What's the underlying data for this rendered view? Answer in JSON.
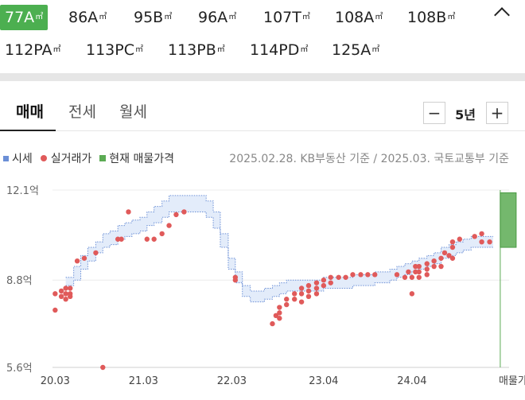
{
  "area_tabs": [
    {
      "label": "77A",
      "unit": "㎡",
      "selected": true
    },
    {
      "label": "86A",
      "unit": "㎡"
    },
    {
      "label": "95B",
      "unit": "㎡"
    },
    {
      "label": "96A",
      "unit": "㎡"
    },
    {
      "label": "107T",
      "unit": "㎡"
    },
    {
      "label": "108A",
      "unit": "㎡"
    },
    {
      "label": "108B",
      "unit": "㎡"
    },
    {
      "label": "112PA",
      "unit": "㎡"
    },
    {
      "label": "113PC",
      "unit": "㎡"
    },
    {
      "label": "113PB",
      "unit": "㎡"
    },
    {
      "label": "114PD",
      "unit": "㎡"
    },
    {
      "label": "125A",
      "unit": "㎡"
    }
  ],
  "trade_tabs": {
    "sale": "매매",
    "jeonse": "전세",
    "monthly": "월세"
  },
  "period": {
    "minus": "−",
    "value": "5년",
    "plus": "+"
  },
  "legend": {
    "market": "시세",
    "actual": "실거래가",
    "listing": "현재 매물가격"
  },
  "source": "2025.02.28. KB부동산 기준 / 2025.03. 국토교통부 기준",
  "colors": {
    "market": "#6b8fd6",
    "actual": "#e05a5a",
    "listing": "#5cab54",
    "accent": "#4caf50"
  },
  "chart_data": {
    "type": "scatter",
    "x_ticks": [
      "20.03",
      "21.03",
      "22.03",
      "23.04",
      "24.04"
    ],
    "x_extra_label": "매물가격",
    "y_ticks": [
      "12.1억",
      "8.8억",
      "5.6억"
    ],
    "ylim": [
      5.6,
      12.1
    ],
    "xlim": [
      2020.18,
      2025.35
    ],
    "grid": true,
    "market_band": {
      "x": [
        2020.33,
        2020.42,
        2020.5,
        2020.58,
        2020.67,
        2020.75,
        2020.83,
        2020.92,
        2021.0,
        2021.08,
        2021.17,
        2021.25,
        2021.33,
        2021.42,
        2021.5,
        2021.58,
        2021.67,
        2021.75,
        2021.83,
        2021.92,
        2022.0,
        2022.08,
        2022.17,
        2022.25,
        2022.33,
        2022.42,
        2022.5,
        2022.58,
        2022.67,
        2022.75,
        2022.83,
        2022.92,
        2023.0,
        2023.08,
        2023.17,
        2023.25,
        2023.33,
        2023.42,
        2023.5,
        2023.58,
        2023.67,
        2023.75,
        2023.83,
        2023.92,
        2024.0,
        2024.08,
        2024.17,
        2024.25,
        2024.33,
        2024.42,
        2024.5,
        2024.58,
        2024.67,
        2024.75,
        2024.83,
        2024.92,
        2025.0,
        2025.08,
        2025.17
      ],
      "upper": [
        8.9,
        9.3,
        9.7,
        10.0,
        10.2,
        10.5,
        10.6,
        10.8,
        10.9,
        11.0,
        11.1,
        11.3,
        11.5,
        11.7,
        11.9,
        11.9,
        11.9,
        11.9,
        11.9,
        11.7,
        11.3,
        10.5,
        9.6,
        9.1,
        8.6,
        8.4,
        8.4,
        8.5,
        8.6,
        8.7,
        8.8,
        8.8,
        8.8,
        8.8,
        8.8,
        8.9,
        8.9,
        8.9,
        8.9,
        9.0,
        9.0,
        9.0,
        9.1,
        9.1,
        9.2,
        9.3,
        9.4,
        9.5,
        9.6,
        9.7,
        9.8,
        10.0,
        10.1,
        10.2,
        10.3,
        10.4,
        10.4,
        10.4,
        10.4
      ],
      "lower": [
        8.6,
        8.8,
        9.2,
        9.5,
        9.8,
        10.0,
        10.1,
        10.3,
        10.4,
        10.5,
        10.6,
        10.8,
        10.9,
        11.1,
        11.3,
        11.3,
        11.3,
        11.3,
        11.3,
        11.1,
        10.7,
        10.0,
        9.2,
        8.7,
        8.2,
        8.0,
        8.0,
        8.1,
        8.2,
        8.3,
        8.4,
        8.4,
        8.4,
        8.4,
        8.4,
        8.5,
        8.5,
        8.5,
        8.5,
        8.6,
        8.6,
        8.6,
        8.7,
        8.7,
        8.8,
        8.9,
        9.0,
        9.1,
        9.2,
        9.3,
        9.4,
        9.6,
        9.7,
        9.8,
        9.9,
        10.0,
        10.0,
        10.0,
        10.0
      ]
    },
    "actual_trades": [
      {
        "x": 2020.21,
        "y": 7.7
      },
      {
        "x": 2020.21,
        "y": 8.3
      },
      {
        "x": 2020.28,
        "y": 8.4
      },
      {
        "x": 2020.28,
        "y": 8.2
      },
      {
        "x": 2020.33,
        "y": 8.5
      },
      {
        "x": 2020.33,
        "y": 8.3
      },
      {
        "x": 2020.33,
        "y": 8.1
      },
      {
        "x": 2020.38,
        "y": 8.5
      },
      {
        "x": 2020.38,
        "y": 8.3
      },
      {
        "x": 2020.38,
        "y": 8.2
      },
      {
        "x": 2020.46,
        "y": 9.5
      },
      {
        "x": 2020.54,
        "y": 9.6
      },
      {
        "x": 2020.67,
        "y": 9.8
      },
      {
        "x": 2020.75,
        "y": 5.6
      },
      {
        "x": 2020.92,
        "y": 10.3
      },
      {
        "x": 2020.96,
        "y": 10.3
      },
      {
        "x": 2021.04,
        "y": 11.3
      },
      {
        "x": 2021.25,
        "y": 10.3
      },
      {
        "x": 2021.33,
        "y": 10.3
      },
      {
        "x": 2021.42,
        "y": 10.5
      },
      {
        "x": 2021.5,
        "y": 10.8
      },
      {
        "x": 2021.58,
        "y": 11.2
      },
      {
        "x": 2021.67,
        "y": 11.3
      },
      {
        "x": 2022.25,
        "y": 8.9
      },
      {
        "x": 2022.25,
        "y": 8.8
      },
      {
        "x": 2022.67,
        "y": 7.2
      },
      {
        "x": 2022.71,
        "y": 7.5
      },
      {
        "x": 2022.75,
        "y": 7.8
      },
      {
        "x": 2022.75,
        "y": 7.6
      },
      {
        "x": 2022.75,
        "y": 7.4
      },
      {
        "x": 2022.83,
        "y": 8.1
      },
      {
        "x": 2022.83,
        "y": 7.9
      },
      {
        "x": 2022.92,
        "y": 8.3
      },
      {
        "x": 2022.92,
        "y": 8.1
      },
      {
        "x": 2023.0,
        "y": 8.5
      },
      {
        "x": 2023.0,
        "y": 8.3
      },
      {
        "x": 2023.0,
        "y": 8.0
      },
      {
        "x": 2023.08,
        "y": 8.6
      },
      {
        "x": 2023.08,
        "y": 8.4
      },
      {
        "x": 2023.08,
        "y": 8.2
      },
      {
        "x": 2023.17,
        "y": 8.7
      },
      {
        "x": 2023.17,
        "y": 8.5
      },
      {
        "x": 2023.17,
        "y": 8.3
      },
      {
        "x": 2023.25,
        "y": 8.8
      },
      {
        "x": 2023.25,
        "y": 8.6
      },
      {
        "x": 2023.33,
        "y": 8.9
      },
      {
        "x": 2023.33,
        "y": 8.7
      },
      {
        "x": 2023.42,
        "y": 8.9
      },
      {
        "x": 2023.5,
        "y": 8.9
      },
      {
        "x": 2023.58,
        "y": 9.0
      },
      {
        "x": 2023.67,
        "y": 9.0
      },
      {
        "x": 2023.75,
        "y": 9.0
      },
      {
        "x": 2023.83,
        "y": 9.0
      },
      {
        "x": 2024.08,
        "y": 9.0
      },
      {
        "x": 2024.17,
        "y": 8.9
      },
      {
        "x": 2024.21,
        "y": 9.1
      },
      {
        "x": 2024.25,
        "y": 8.9
      },
      {
        "x": 2024.25,
        "y": 8.3
      },
      {
        "x": 2024.29,
        "y": 9.3
      },
      {
        "x": 2024.29,
        "y": 9.1
      },
      {
        "x": 2024.33,
        "y": 9.3
      },
      {
        "x": 2024.33,
        "y": 9.1
      },
      {
        "x": 2024.33,
        "y": 8.9
      },
      {
        "x": 2024.42,
        "y": 9.4
      },
      {
        "x": 2024.42,
        "y": 9.2
      },
      {
        "x": 2024.42,
        "y": 9.0
      },
      {
        "x": 2024.5,
        "y": 9.5
      },
      {
        "x": 2024.5,
        "y": 9.3
      },
      {
        "x": 2024.58,
        "y": 9.6
      },
      {
        "x": 2024.58,
        "y": 9.3
      },
      {
        "x": 2024.62,
        "y": 9.8
      },
      {
        "x": 2024.67,
        "y": 9.7
      },
      {
        "x": 2024.71,
        "y": 10.2
      },
      {
        "x": 2024.71,
        "y": 10.0
      },
      {
        "x": 2024.71,
        "y": 9.6
      },
      {
        "x": 2024.79,
        "y": 10.3
      },
      {
        "x": 2024.96,
        "y": 10.4
      },
      {
        "x": 2025.04,
        "y": 10.5
      },
      {
        "x": 2025.04,
        "y": 10.2
      },
      {
        "x": 2025.13,
        "y": 10.2
      }
    ],
    "listing_range": {
      "x": 2025.25,
      "low": 10.0,
      "high": 12.0
    }
  }
}
